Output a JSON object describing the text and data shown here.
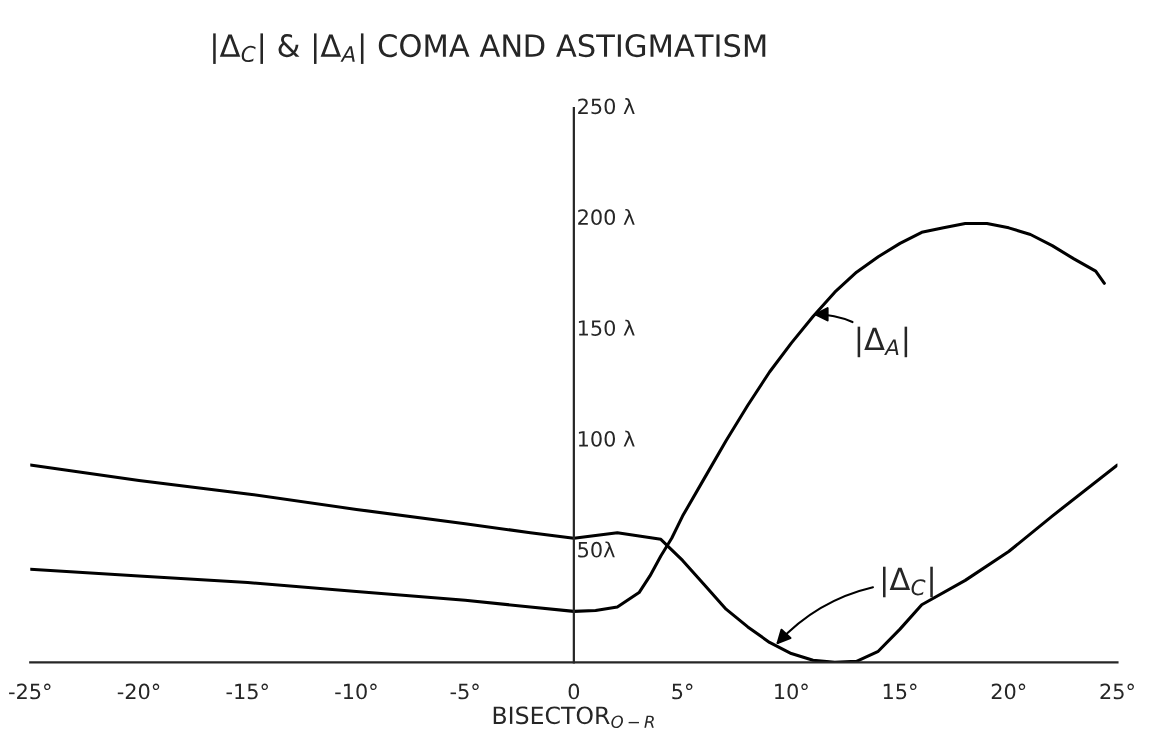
{
  "chart_data": {
    "type": "line",
    "title": "|Δ$_{C}$| & |Δ$_{A}$| COMA AND ASTIGMATISM",
    "xlabel": "BISECTOR$_{O−R}$",
    "series": [
      {
        "color": "#000000",
        "x": [
          -25,
          -20,
          -15,
          -10,
          -5,
          -2,
          0,
          2,
          4,
          5,
          6,
          7,
          8,
          9,
          10,
          11,
          12,
          13,
          14,
          15,
          16,
          18,
          20,
          22,
          25
        ],
        "values": [
          89,
          82,
          76,
          69,
          62.5,
          58.5,
          56,
          58.5,
          55.5,
          46,
          35,
          24,
          16,
          9,
          4,
          1,
          0,
          0.5,
          5,
          15,
          26,
          37,
          50,
          66,
          89
        ]
      },
      {
        "color": "#000000",
        "x": [
          -25,
          -20,
          -15,
          -10,
          -5,
          -2,
          0,
          1,
          2,
          3,
          3.5,
          4,
          4.5,
          5,
          6,
          7,
          8,
          9,
          10,
          11,
          12,
          13,
          14,
          15,
          16,
          17,
          18,
          19,
          20,
          21,
          22,
          23,
          24,
          24.4
        ],
        "values": [
          42,
          39,
          36,
          32,
          28,
          25,
          23,
          23.4,
          25,
          31.5,
          39,
          48,
          56,
          66,
          83,
          100,
          116,
          131,
          144,
          156,
          167,
          176,
          183,
          189,
          194,
          196,
          198,
          198,
          196,
          193,
          188,
          182,
          176.5,
          171
        ]
      }
    ],
    "annotations": [
      {
        "text": "|Δ$_{A}$|",
        "x": 11,
        "y": 157
      },
      {
        "text": "|Δ$_{C}$|",
        "x": 9.3,
        "y": 8
      }
    ],
    "xlim": [
      -25,
      25
    ],
    "ylim": [
      0,
      250
    ],
    "xticks": [
      {
        "value": -25,
        "label": "-25°"
      },
      {
        "value": -20,
        "label": "-20°"
      },
      {
        "value": -15,
        "label": "-15°"
      },
      {
        "value": -10,
        "label": "-10°"
      },
      {
        "value": -5,
        "label": "-5°"
      },
      0,
      {
        "value": 5,
        "label": "5°"
      },
      {
        "value": 10,
        "label": "10°"
      },
      {
        "value": 15,
        "label": "15°"
      },
      {
        "value": 20,
        "label": "20°"
      },
      {
        "value": 25,
        "label": "25°"
      }
    ],
    "yticks": [
      {
        "value": 50,
        "label": "50λ"
      },
      {
        "value": 100,
        "label": "100 λ"
      },
      {
        "value": 150,
        "label": "150 λ"
      },
      {
        "value": 200,
        "label": "200 λ"
      },
      {
        "value": 250,
        "label": "250 λ"
      }
    ],
    "grid": false,
    "legend": false,
    "marker": "none",
    "line_style": "solid"
  }
}
